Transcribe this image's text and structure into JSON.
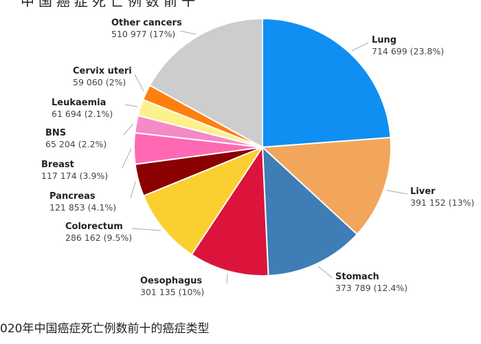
{
  "cropped_heading": "中国癌症死亡例数前十",
  "caption": "020年中国癌症死亡例数前十的癌症类型",
  "chart_data": {
    "type": "pie",
    "title": "",
    "slices": [
      {
        "name": "Lung",
        "value": 714699,
        "value_label": "714 699 (23.8%)",
        "percent": 23.8,
        "color": "#0f8ff2"
      },
      {
        "name": "Liver",
        "value": 391152,
        "value_label": "391 152 (13%)",
        "percent": 13.0,
        "color": "#f2a65c"
      },
      {
        "name": "Stomach",
        "value": 373789,
        "value_label": "373 789 (12.4%)",
        "percent": 12.4,
        "color": "#3e7db6"
      },
      {
        "name": "Oesophagus",
        "value": 301135,
        "value_label": "301 135 (10%)",
        "percent": 10.0,
        "color": "#dc143c"
      },
      {
        "name": "Colorectum",
        "value": 286162,
        "value_label": "286 162 (9.5%)",
        "percent": 9.5,
        "color": "#fbcf2f"
      },
      {
        "name": "Pancreas",
        "value": 121853,
        "value_label": "121 853 (4.1%)",
        "percent": 4.1,
        "color": "#8b0000"
      },
      {
        "name": "Breast",
        "value": 117174,
        "value_label": "117 174 (3.9%)",
        "percent": 3.9,
        "color": "#ff69b4"
      },
      {
        "name": "BNS",
        "value": 65204,
        "value_label": "65 204 (2.2%)",
        "percent": 2.2,
        "color": "#f58ac6"
      },
      {
        "name": "Leukaemia",
        "value": 61694,
        "value_label": "61 694 (2.1%)",
        "percent": 2.1,
        "color": "#fcf28b"
      },
      {
        "name": "Cervix uteri",
        "value": 59060,
        "value_label": "59 060 (2%)",
        "percent": 2.0,
        "color": "#ff7f0e"
      },
      {
        "name": "Other cancers",
        "value": 510977,
        "value_label": "510 977 (17%)",
        "percent": 17.0,
        "color": "#cdcdcd"
      }
    ]
  }
}
